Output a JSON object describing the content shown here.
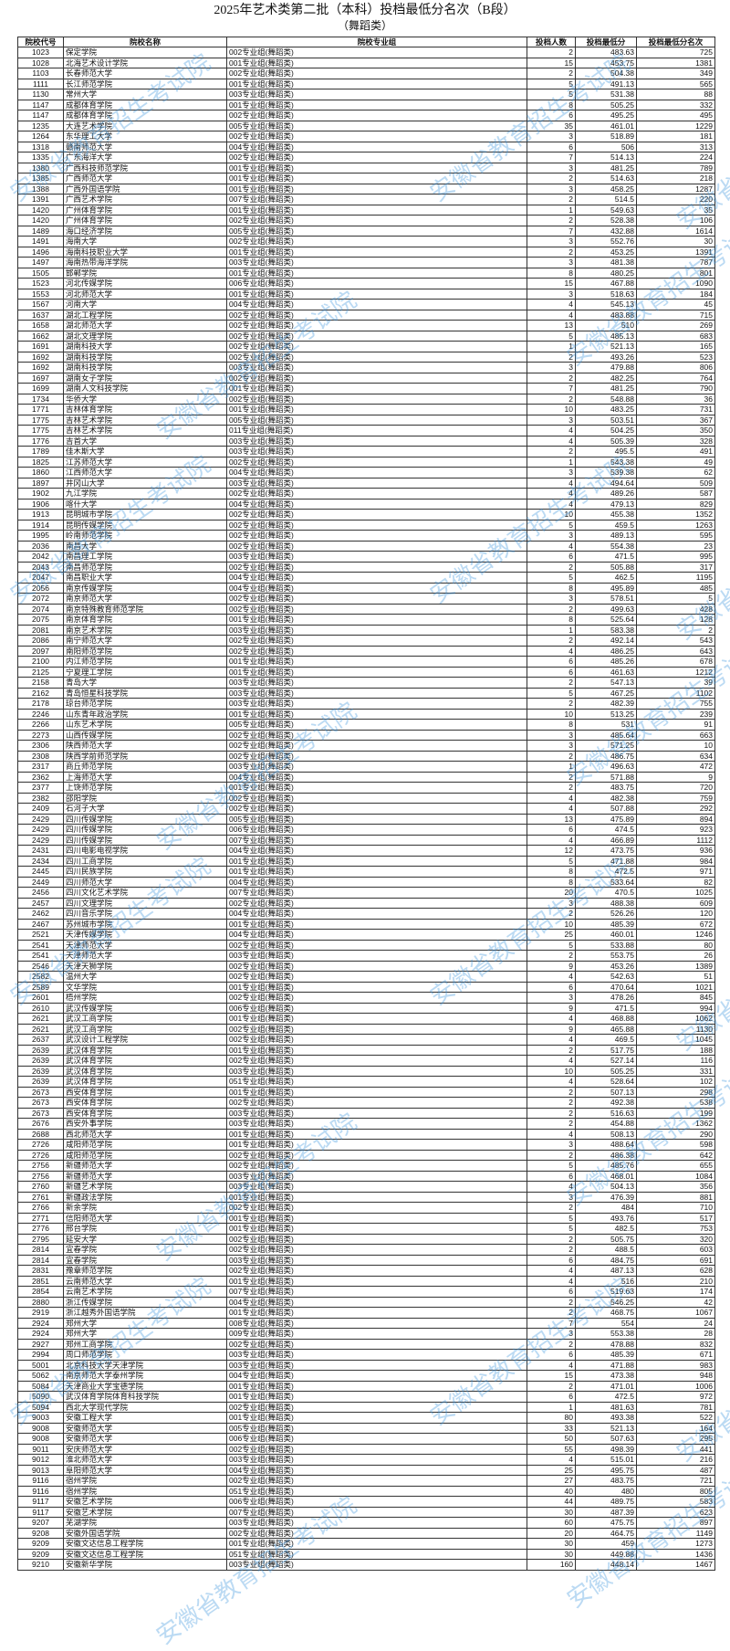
{
  "title": "2025年艺术类第二批（本科）投档最低分名次（B段）",
  "subtitle": "（舞蹈类）",
  "watermark": "安徽省教育招生考试院",
  "watermark_color": "#3c96dc",
  "columns": [
    "院校代号",
    "院校名称",
    "院校专业组",
    "投档人数",
    "投档最低分",
    "投档最低分名次"
  ],
  "rows": [
    [
      "1023",
      "保定学院",
      "002专业组(舞蹈类)",
      "2",
      "483.63",
      "725"
    ],
    [
      "1028",
      "北海艺术设计学院",
      "001专业组(舞蹈类)",
      "15",
      "453.75",
      "1381"
    ],
    [
      "1103",
      "长春师范大学",
      "002专业组(舞蹈类)",
      "2",
      "504.38",
      "349"
    ],
    [
      "1111",
      "长江师范学院",
      "001专业组(舞蹈类)",
      "5",
      "491.13",
      "565"
    ],
    [
      "1130",
      "常州大学",
      "003专业组(舞蹈类)",
      "5",
      "531.38",
      "88"
    ],
    [
      "1147",
      "成都体育学院",
      "001专业组(舞蹈类)",
      "8",
      "505.25",
      "332"
    ],
    [
      "1147",
      "成都体育学院",
      "002专业组(舞蹈类)",
      "6",
      "495.25",
      "495"
    ],
    [
      "1235",
      "大连艺术学院",
      "005专业组(舞蹈类)",
      "35",
      "461.01",
      "1229"
    ],
    [
      "1264",
      "东华理工大学",
      "002专业组(舞蹈类)",
      "3",
      "518.89",
      "181"
    ],
    [
      "1318",
      "赣南师范大学",
      "004专业组(舞蹈类)",
      "6",
      "506",
      "313"
    ],
    [
      "1335",
      "广东海洋大学",
      "002专业组(舞蹈类)",
      "7",
      "514.13",
      "224"
    ],
    [
      "1380",
      "广西科技师范学院",
      "001专业组(舞蹈类)",
      "3",
      "481.25",
      "789"
    ],
    [
      "1385",
      "广西师范大学",
      "001专业组(舞蹈类)",
      "2",
      "514.63",
      "218"
    ],
    [
      "1388",
      "广西外国语学院",
      "001专业组(舞蹈类)",
      "3",
      "458.25",
      "1287"
    ],
    [
      "1391",
      "广西艺术学院",
      "007专业组(舞蹈类)",
      "2",
      "514.5",
      "220"
    ],
    [
      "1420",
      "广州体育学院",
      "001专业组(舞蹈类)",
      "1",
      "549.63",
      "35"
    ],
    [
      "1420",
      "广州体育学院",
      "002专业组(舞蹈类)",
      "2",
      "528.38",
      "106"
    ],
    [
      "1489",
      "海口经济学院",
      "005专业组(舞蹈类)",
      "7",
      "432.88",
      "1614"
    ],
    [
      "1491",
      "海南大学",
      "002专业组(舞蹈类)",
      "3",
      "552.76",
      "30"
    ],
    [
      "1496",
      "海南科技职业大学",
      "001专业组(舞蹈类)",
      "2",
      "453.25",
      "1391"
    ],
    [
      "1497",
      "海南热带海洋学院",
      "003专业组(舞蹈类)",
      "3",
      "481.38",
      "787"
    ],
    [
      "1505",
      "邯郸学院",
      "001专业组(舞蹈类)",
      "8",
      "480.25",
      "801"
    ],
    [
      "1523",
      "河北传媒学院",
      "006专业组(舞蹈类)",
      "15",
      "467.88",
      "1090"
    ],
    [
      "1553",
      "河北师范大学",
      "001专业组(舞蹈类)",
      "3",
      "518.63",
      "184"
    ],
    [
      "1567",
      "河南大学",
      "004专业组(舞蹈类)",
      "4",
      "545.13",
      "45"
    ],
    [
      "1637",
      "湖北工程学院",
      "002专业组(舞蹈类)",
      "4",
      "483.88",
      "715"
    ],
    [
      "1658",
      "湖北师范大学",
      "002专业组(舞蹈类)",
      "13",
      "510",
      "269"
    ],
    [
      "1662",
      "湖北文理学院",
      "002专业组(舞蹈类)",
      "5",
      "485.13",
      "683"
    ],
    [
      "1691",
      "湖南科技大学",
      "002专业组(舞蹈类)",
      "1",
      "521.13",
      "165"
    ],
    [
      "1692",
      "湖南科技学院",
      "002专业组(舞蹈类)",
      "2",
      "493.26",
      "523"
    ],
    [
      "1692",
      "湖南科技学院",
      "003专业组(舞蹈类)",
      "3",
      "479.88",
      "806"
    ],
    [
      "1697",
      "湖南女子学院",
      "002专业组(舞蹈类)",
      "2",
      "482.25",
      "764"
    ],
    [
      "1699",
      "湖南人文科技学院",
      "001专业组(舞蹈类)",
      "7",
      "481.25",
      "790"
    ],
    [
      "1734",
      "华侨大学",
      "002专业组(舞蹈类)",
      "2",
      "548.88",
      "36"
    ],
    [
      "1771",
      "吉林体育学院",
      "001专业组(舞蹈类)",
      "10",
      "483.25",
      "731"
    ],
    [
      "1775",
      "吉林艺术学院",
      "005专业组(舞蹈类)",
      "3",
      "503.51",
      "367"
    ],
    [
      "1775",
      "吉林艺术学院",
      "011专业组(舞蹈类)",
      "4",
      "504.25",
      "350"
    ],
    [
      "1776",
      "吉首大学",
      "003专业组(舞蹈类)",
      "4",
      "505.39",
      "328"
    ],
    [
      "1789",
      "佳木斯大学",
      "003专业组(舞蹈类)",
      "2",
      "495.5",
      "491"
    ],
    [
      "1825",
      "江苏师范大学",
      "002专业组(舞蹈类)",
      "1",
      "543.38",
      "49"
    ],
    [
      "1860",
      "江西师范大学",
      "004专业组(舞蹈类)",
      "3",
      "539.38",
      "62"
    ],
    [
      "1897",
      "井冈山大学",
      "003专业组(舞蹈类)",
      "4",
      "494.64",
      "509"
    ],
    [
      "1902",
      "九江学院",
      "002专业组(舞蹈类)",
      "4",
      "489.26",
      "587"
    ],
    [
      "1906",
      "喀什大学",
      "004专业组(舞蹈类)",
      "4",
      "479.13",
      "829"
    ],
    [
      "1913",
      "昆明城市学院",
      "002专业组(舞蹈类)",
      "10",
      "455.38",
      "1352"
    ],
    [
      "1914",
      "昆明传媒学院",
      "002专业组(舞蹈类)",
      "5",
      "459.5",
      "1263"
    ],
    [
      "1995",
      "岭南师范学院",
      "002专业组(舞蹈类)",
      "3",
      "489.13",
      "595"
    ],
    [
      "2036",
      "南昌大学",
      "002专业组(舞蹈类)",
      "4",
      "554.38",
      "23"
    ],
    [
      "2042",
      "南昌理工学院",
      "003专业组(舞蹈类)",
      "6",
      "471.5",
      "995"
    ],
    [
      "2043",
      "南昌师范学院",
      "002专业组(舞蹈类)",
      "2",
      "505.88",
      "317"
    ],
    [
      "2047",
      "南昌职业大学",
      "004专业组(舞蹈类)",
      "5",
      "462.5",
      "1195"
    ],
    [
      "2056",
      "南京传媒学院",
      "004专业组(舞蹈类)",
      "8",
      "495.89",
      "485"
    ],
    [
      "2072",
      "南京师范大学",
      "002专业组(舞蹈类)",
      "3",
      "578.51",
      "5"
    ],
    [
      "2074",
      "南京特殊教育师范学院",
      "002专业组(舞蹈类)",
      "2",
      "499.63",
      "428"
    ],
    [
      "2075",
      "南京体育学院",
      "001专业组(舞蹈类)",
      "8",
      "525.64",
      "128"
    ],
    [
      "2081",
      "南京艺术学院",
      "003专业组(舞蹈类)",
      "1",
      "583.38",
      "2"
    ],
    [
      "2086",
      "南宁师范大学",
      "002专业组(舞蹈类)",
      "2",
      "492.14",
      "543"
    ],
    [
      "2097",
      "南阳师范学院",
      "002专业组(舞蹈类)",
      "4",
      "486.25",
      "643"
    ],
    [
      "2100",
      "内江师范学院",
      "001专业组(舞蹈类)",
      "6",
      "485.26",
      "678"
    ],
    [
      "2125",
      "宁夏理工学院",
      "001专业组(舞蹈类)",
      "6",
      "461.63",
      "1212"
    ],
    [
      "2158",
      "青岛大学",
      "003专业组(舞蹈类)",
      "2",
      "547.13",
      "39"
    ],
    [
      "2162",
      "青岛恒星科技学院",
      "003专业组(舞蹈类)",
      "5",
      "467.25",
      "1102"
    ],
    [
      "2178",
      "琼台师范学院",
      "003专业组(舞蹈类)",
      "2",
      "482.39",
      "755"
    ],
    [
      "2246",
      "山东青年政治学院",
      "001专业组(舞蹈类)",
      "10",
      "513.25",
      "239"
    ],
    [
      "2266",
      "山东艺术学院",
      "005专业组(舞蹈类)",
      "8",
      "531",
      "91"
    ],
    [
      "2273",
      "山西传媒学院",
      "002专业组(舞蹈类)",
      "3",
      "485.64",
      "663"
    ],
    [
      "2306",
      "陕西师范大学",
      "002专业组(舞蹈类)",
      "3",
      "571.25",
      "10"
    ],
    [
      "2308",
      "陕西学前师范学院",
      "002专业组(舞蹈类)",
      "2",
      "486.75",
      "634"
    ],
    [
      "2317",
      "商丘师范学院",
      "003专业组(舞蹈类)",
      "1",
      "496.63",
      "472"
    ],
    [
      "2362",
      "上海师范大学",
      "004专业组(舞蹈类)",
      "2",
      "571.88",
      "9"
    ],
    [
      "2377",
      "上饶师范学院",
      "001专业组(舞蹈类)",
      "2",
      "483.75",
      "720"
    ],
    [
      "2382",
      "邵阳学院",
      "002专业组(舞蹈类)",
      "4",
      "482.38",
      "759"
    ],
    [
      "2409",
      "石河子大学",
      "002专业组(舞蹈类)",
      "4",
      "507.88",
      "292"
    ],
    [
      "2429",
      "四川传媒学院",
      "005专业组(舞蹈类)",
      "13",
      "475.89",
      "894"
    ],
    [
      "2429",
      "四川传媒学院",
      "006专业组(舞蹈类)",
      "6",
      "474.5",
      "923"
    ],
    [
      "2429",
      "四川传媒学院",
      "007专业组(舞蹈类)",
      "4",
      "466.89",
      "1112"
    ],
    [
      "2431",
      "四川电影电视学院",
      "004专业组(舞蹈类)",
      "12",
      "473.75",
      "936"
    ],
    [
      "2434",
      "四川工商学院",
      "001专业组(舞蹈类)",
      "5",
      "471.88",
      "984"
    ],
    [
      "2445",
      "四川民族学院",
      "001专业组(舞蹈类)",
      "8",
      "472.5",
      "971"
    ],
    [
      "2449",
      "四川师范大学",
      "004专业组(舞蹈类)",
      "8",
      "533.64",
      "82"
    ],
    [
      "2456",
      "四川文化艺术学院",
      "007专业组(舞蹈类)",
      "20",
      "470.5",
      "1025"
    ],
    [
      "2457",
      "四川文理学院",
      "002专业组(舞蹈类)",
      "3",
      "488.38",
      "609"
    ],
    [
      "2462",
      "四川音乐学院",
      "004专业组(舞蹈类)",
      "2",
      "526.26",
      "120"
    ],
    [
      "2467",
      "苏州城市学院",
      "001专业组(舞蹈类)",
      "10",
      "485.39",
      "672"
    ],
    [
      "2521",
      "天津传媒学院",
      "004专业组(舞蹈类)",
      "25",
      "460.01",
      "1246"
    ],
    [
      "2541",
      "天津师范大学",
      "002专业组(舞蹈类)",
      "5",
      "533.88",
      "80"
    ],
    [
      "2541",
      "天津师范大学",
      "003专业组(舞蹈类)",
      "2",
      "553.75",
      "26"
    ],
    [
      "2546",
      "天津天狮学院",
      "002专业组(舞蹈类)",
      "9",
      "453.26",
      "1389"
    ],
    [
      "2582",
      "温州大学",
      "002专业组(舞蹈类)",
      "4",
      "542.63",
      "51"
    ],
    [
      "2589",
      "文华学院",
      "001专业组(舞蹈类)",
      "6",
      "470.64",
      "1021"
    ],
    [
      "2601",
      "梧州学院",
      "002专业组(舞蹈类)",
      "3",
      "478.26",
      "845"
    ],
    [
      "2610",
      "武汉传媒学院",
      "006专业组(舞蹈类)",
      "9",
      "471.5",
      "994"
    ],
    [
      "2621",
      "武汉工商学院",
      "001专业组(舞蹈类)",
      "4",
      "468.88",
      "1062"
    ],
    [
      "2621",
      "武汉工商学院",
      "002专业组(舞蹈类)",
      "9",
      "465.88",
      "1130"
    ],
    [
      "2637",
      "武汉设计工程学院",
      "002专业组(舞蹈类)",
      "4",
      "469.5",
      "1045"
    ],
    [
      "2639",
      "武汉体育学院",
      "001专业组(舞蹈类)",
      "2",
      "517.75",
      "188"
    ],
    [
      "2639",
      "武汉体育学院",
      "002专业组(舞蹈类)",
      "4",
      "527.14",
      "116"
    ],
    [
      "2639",
      "武汉体育学院",
      "003专业组(舞蹈类)",
      "10",
      "505.25",
      "331"
    ],
    [
      "2639",
      "武汉体育学院",
      "051专业组(舞蹈类)",
      "4",
      "528.64",
      "102"
    ],
    [
      "2673",
      "西安体育学院",
      "001专业组(舞蹈类)",
      "2",
      "507.13",
      "298"
    ],
    [
      "2673",
      "西安体育学院",
      "002专业组(舞蹈类)",
      "2",
      "492.38",
      "538"
    ],
    [
      "2673",
      "西安体育学院",
      "003专业组(舞蹈类)",
      "2",
      "516.63",
      "199"
    ],
    [
      "2676",
      "西安外事学院",
      "003专业组(舞蹈类)",
      "2",
      "454.88",
      "1362"
    ],
    [
      "2688",
      "西北师范大学",
      "001专业组(舞蹈类)",
      "4",
      "508.13",
      "290"
    ],
    [
      "2726",
      "咸阳师范学院",
      "001专业组(舞蹈类)",
      "3",
      "488.64",
      "598"
    ],
    [
      "2726",
      "咸阳师范学院",
      "002专业组(舞蹈类)",
      "2",
      "486.38",
      "642"
    ],
    [
      "2756",
      "新疆师范大学",
      "002专业组(舞蹈类)",
      "5",
      "485.76",
      "655"
    ],
    [
      "2756",
      "新疆师范大学",
      "003专业组(舞蹈类)",
      "6",
      "468.01",
      "1084"
    ],
    [
      "2760",
      "新疆艺术学院",
      "003专业组(舞蹈类)",
      "4",
      "504.13",
      "356"
    ],
    [
      "2761",
      "新疆政法学院",
      "001专业组(舞蹈类)",
      "3",
      "476.39",
      "881"
    ],
    [
      "2766",
      "新余学院",
      "002专业组(舞蹈类)",
      "2",
      "484",
      "710"
    ],
    [
      "2771",
      "信阳师范大学",
      "001专业组(舞蹈类)",
      "5",
      "493.76",
      "517"
    ],
    [
      "2776",
      "邢台学院",
      "001专业组(舞蹈类)",
      "5",
      "482.5",
      "753"
    ],
    [
      "2795",
      "延安大学",
      "002专业组(舞蹈类)",
      "2",
      "505.75",
      "320"
    ],
    [
      "2814",
      "宜春学院",
      "002专业组(舞蹈类)",
      "2",
      "488.5",
      "603"
    ],
    [
      "2814",
      "宜春学院",
      "003专业组(舞蹈类)",
      "6",
      "484.75",
      "691"
    ],
    [
      "2831",
      "豫章师范学院",
      "002专业组(舞蹈类)",
      "4",
      "487.13",
      "628"
    ],
    [
      "2851",
      "云南师范大学",
      "001专业组(舞蹈类)",
      "4",
      "516",
      "210"
    ],
    [
      "2854",
      "云南艺术学院",
      "007专业组(舞蹈类)",
      "6",
      "519.63",
      "174"
    ],
    [
      "2880",
      "浙江传媒学院",
      "004专业组(舞蹈类)",
      "2",
      "546.25",
      "42"
    ],
    [
      "2919",
      "浙江越秀外国语学院",
      "001专业组(舞蹈类)",
      "2",
      "468.75",
      "1067"
    ],
    [
      "2924",
      "郑州大学",
      "008专业组(舞蹈类)",
      "7",
      "554",
      "24"
    ],
    [
      "2924",
      "郑州大学",
      "009专业组(舞蹈类)",
      "3",
      "553.38",
      "28"
    ],
    [
      "2927",
      "郑州工商学院",
      "002专业组(舞蹈类)",
      "2",
      "478.88",
      "832"
    ],
    [
      "2994",
      "周口师范学院",
      "003专业组(舞蹈类)",
      "6",
      "485.39",
      "671"
    ],
    [
      "5001",
      "北京科技大学天津学院",
      "003专业组(舞蹈类)",
      "4",
      "471.88",
      "983"
    ],
    [
      "5062",
      "南京师范大学泰州学院",
      "004专业组(舞蹈类)",
      "15",
      "473.38",
      "948"
    ],
    [
      "5084",
      "天津商业大学宝德学院",
      "001专业组(舞蹈类)",
      "2",
      "471.01",
      "1006"
    ],
    [
      "5090",
      "武汉体育学院体育科技学院",
      "001专业组(舞蹈类)",
      "6",
      "472.5",
      "972"
    ],
    [
      "5094",
      "西北大学现代学院",
      "002专业组(舞蹈类)",
      "1",
      "481.63",
      "781"
    ],
    [
      "9003",
      "安徽工程大学",
      "001专业组(舞蹈类)",
      "80",
      "493.38",
      "522"
    ],
    [
      "9008",
      "安徽师范大学",
      "005专业组(舞蹈类)",
      "33",
      "521.13",
      "164"
    ],
    [
      "9008",
      "安徽师范大学",
      "006专业组(舞蹈类)",
      "50",
      "507.63",
      "295"
    ],
    [
      "9011",
      "安庆师范大学",
      "002专业组(舞蹈类)",
      "55",
      "498.39",
      "441"
    ],
    [
      "9012",
      "淮北师范大学",
      "003专业组(舞蹈类)",
      "4",
      "515.01",
      "216"
    ],
    [
      "9013",
      "阜阳师范大学",
      "004专业组(舞蹈类)",
      "25",
      "495.75",
      "487"
    ],
    [
      "9116",
      "宿州学院",
      "002专业组(舞蹈类)",
      "27",
      "483.75",
      "721"
    ],
    [
      "9116",
      "宿州学院",
      "051专业组(舞蹈类)",
      "40",
      "480",
      "805"
    ],
    [
      "9117",
      "安徽艺术学院",
      "006专业组(舞蹈类)",
      "44",
      "489.75",
      "583"
    ],
    [
      "9117",
      "安徽艺术学院",
      "007专业组(舞蹈类)",
      "30",
      "487.39",
      "623"
    ],
    [
      "9207",
      "芜湖学院",
      "003专业组(舞蹈类)",
      "60",
      "475.75",
      "897"
    ],
    [
      "9208",
      "安徽外国语学院",
      "002专业组(舞蹈类)",
      "20",
      "464.75",
      "1149"
    ],
    [
      "9209",
      "安徽文达信息工程学院",
      "001专业组(舞蹈类)",
      "30",
      "459",
      "1273"
    ],
    [
      "9209",
      "安徽文达信息工程学院",
      "051专业组(舞蹈类)",
      "30",
      "449.88",
      "1436"
    ],
    [
      "9210",
      "安徽新华学院",
      "003专业组(舞蹈类)",
      "160",
      "448.14",
      "1467"
    ]
  ]
}
